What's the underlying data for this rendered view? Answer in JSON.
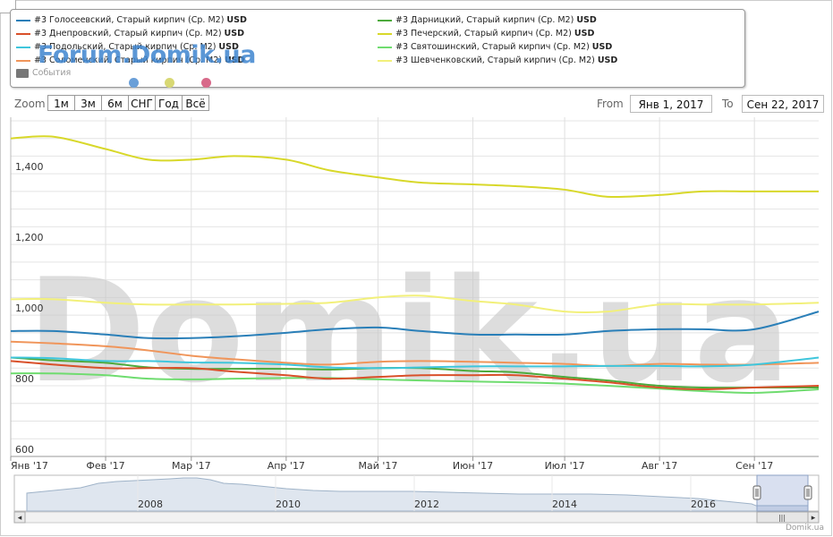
{
  "legend": {
    "items": [
      {
        "name": "#3 Голосеевский, Старый кирпич (Ср. M2)",
        "unit": "USD",
        "color": "#2a7fb8"
      },
      {
        "name": "#3 Днепровский, Старый кирпич (Ср. M2)",
        "unit": "USD",
        "color": "#d9502a"
      },
      {
        "name": "#3 Подольский, Старый кирпич (Ср. M2)",
        "unit": "USD",
        "color": "#3fc6dc"
      },
      {
        "name": "#3 Соломенский, Старый кирпич (Ср. M2)",
        "unit": "USD",
        "color": "#f0955a"
      },
      {
        "name": "#3 Дарницкий, Старый кирпич (Ср. M2)",
        "unit": "USD",
        "color": "#4daa3c"
      },
      {
        "name": "#3 Печерский, Старый кирпич (Ср. M2)",
        "unit": "USD",
        "color": "#d8d82a"
      },
      {
        "name": "#3 Святошинский, Старый кирпич (Ср. M2)",
        "unit": "USD",
        "color": "#6fdc6f"
      },
      {
        "name": "#3 Шевченковский, Старый кирпич (Ср. M2)",
        "unit": "USD",
        "color": "#f2f07a"
      }
    ],
    "events_label": "События",
    "event_dot_colors": [
      "#6a9fd8",
      "#d8d874",
      "#d86a8a"
    ]
  },
  "watermarks": {
    "forum": "Forum.Domik.ua",
    "main": "Domik.ua"
  },
  "toolbar": {
    "zoom_label": "Zoom",
    "zoom_buttons": [
      "1м",
      "3м",
      "6м",
      "СНГ",
      "Год",
      "Всё"
    ],
    "from_label": "From",
    "from_value": "Янв 1, 2017",
    "to_label": "To",
    "to_value": "Сен 22, 2017"
  },
  "credit": "Domik.ua",
  "chart_data": {
    "type": "line",
    "x_labels": [
      "Янв '17",
      "Фев '17",
      "Мар '17",
      "Апр '17",
      "Май '17",
      "Июн '17",
      "Июл '17",
      "Авг '17",
      "Сен '17"
    ],
    "x_range": [
      "2017-01-01",
      "2017-09-22"
    ],
    "y_tick_labels": [
      "600",
      "800",
      "1,000",
      "1,200",
      "1,400"
    ],
    "ylim": [
      600,
      1560
    ],
    "grid": true,
    "x": [
      "2017-01-01",
      "2017-01-15",
      "2017-02-01",
      "2017-02-15",
      "2017-03-01",
      "2017-03-15",
      "2017-04-01",
      "2017-04-15",
      "2017-05-01",
      "2017-05-15",
      "2017-06-01",
      "2017-06-15",
      "2017-07-01",
      "2017-07-15",
      "2017-08-01",
      "2017-08-15",
      "2017-09-01",
      "2017-09-22"
    ],
    "series": [
      {
        "name": "#3 Голосеевский, Старый кирпич (Ср. M2)",
        "color": "#2a7fb8",
        "values": [
          955,
          955,
          945,
          935,
          935,
          940,
          950,
          960,
          965,
          955,
          945,
          945,
          945,
          955,
          960,
          960,
          960,
          1010
        ]
      },
      {
        "name": "#3 Днепровский, Старый кирпич (Ср. M2)",
        "color": "#d9502a",
        "values": [
          870,
          860,
          850,
          850,
          850,
          840,
          830,
          820,
          825,
          830,
          830,
          830,
          820,
          810,
          795,
          790,
          795,
          800
        ]
      },
      {
        "name": "#3 Подольский, Старый кирпич (Ср. M2)",
        "color": "#3fc6dc",
        "values": [
          880,
          878,
          870,
          870,
          866,
          865,
          860,
          852,
          850,
          852,
          855,
          855,
          855,
          856,
          856,
          855,
          860,
          880
        ]
      },
      {
        "name": "#3 Соломенский, Старый кирпич (Ср. M2)",
        "color": "#f0955a",
        "values": [
          925,
          920,
          912,
          900,
          885,
          875,
          865,
          860,
          868,
          870,
          868,
          865,
          862,
          856,
          862,
          860,
          860,
          865
        ]
      },
      {
        "name": "#3 Дарницкий, Старый кирпич (Ср. M2)",
        "color": "#4daa3c",
        "values": [
          880,
          872,
          865,
          852,
          848,
          848,
          848,
          846,
          850,
          850,
          842,
          838,
          825,
          815,
          800,
          795,
          795,
          795
        ]
      },
      {
        "name": "#3 Печерский, Старый кирпич (Ср. M2)",
        "color": "#d8d82a",
        "values": [
          1500,
          1505,
          1470,
          1440,
          1440,
          1450,
          1440,
          1410,
          1390,
          1375,
          1370,
          1365,
          1355,
          1335,
          1340,
          1350,
          1350,
          1350
        ]
      },
      {
        "name": "#3 Святошинский, Старый кирпич (Ср. M2)",
        "color": "#6fdc6f",
        "values": [
          835,
          835,
          830,
          820,
          818,
          820,
          822,
          822,
          818,
          815,
          812,
          810,
          806,
          800,
          792,
          785,
          780,
          790
        ]
      },
      {
        "name": "#3 Шевченковский, Старый кирпич (Ср. M2)",
        "color": "#f2f07a",
        "values": [
          1045,
          1045,
          1035,
          1030,
          1030,
          1030,
          1032,
          1035,
          1050,
          1055,
          1040,
          1030,
          1010,
          1010,
          1030,
          1030,
          1030,
          1035
        ]
      }
    ]
  },
  "navigator": {
    "year_labels": [
      "2008",
      "2010",
      "2012",
      "2014",
      "2016"
    ],
    "handle_grip": "|||",
    "left_arrow": "◂",
    "right_arrow": "▸"
  }
}
